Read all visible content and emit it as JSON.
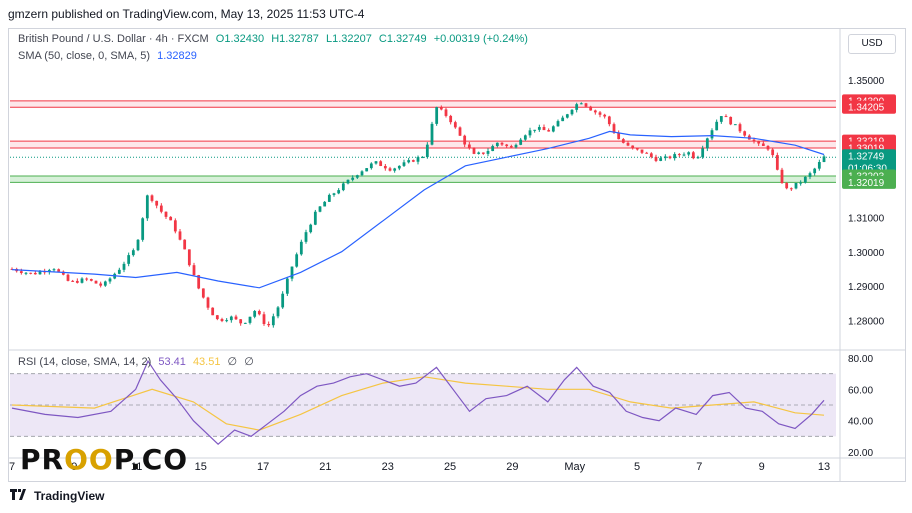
{
  "publisher_line": "gmzern published on TradingView.com, May 13, 2025 11:53 UTC-4",
  "legend": {
    "symbol": "British Pound / U.S. Dollar · 4h · FXCM",
    "open": "O1.32430",
    "high": "H1.32787",
    "low": "L1.32207",
    "close": "C1.32749",
    "change": "+0.00319 (+0.24%)",
    "sma_label": "SMA (50, close, 0, SMA, 5)",
    "sma_value": "1.32829",
    "rsi_label": "RSI (14, close, SMA, 14, 2)",
    "rsi_value": "53.41",
    "rsi_ma_value": "43.51",
    "rsi_extra1": "∅",
    "rsi_extra2": "∅"
  },
  "currency_button": "USD",
  "footer_brand": "TradingView",
  "watermark": {
    "left": "PR",
    "oo": "OO",
    "right": "P.CO"
  },
  "colors": {
    "up": "#089981",
    "down": "#f23645",
    "sma": "#2962ff",
    "rsi": "#7e57c2",
    "rsi_ma": "#f5c543",
    "resistance_fill": "#fde7ea",
    "resistance_line": "#f23645",
    "support_fill": "#d6f0d8",
    "support_line": "#4caf50",
    "rsi_band": "#ede7f6"
  },
  "chart_data": {
    "type": "candlestick",
    "price_axis": {
      "range": [
        1.272,
        1.3552
      ],
      "ticks": [
        1.35,
        1.34,
        1.33,
        1.32,
        1.31,
        1.3,
        1.29,
        1.28
      ],
      "tick_labels": [
        "1.35000",
        "",
        "",
        "",
        "1.31000",
        "1.30000",
        "1.29000",
        "1.28000"
      ]
    },
    "price_labels": [
      {
        "value": 1.3439,
        "text": "1.34390",
        "color": "#f23645",
        "level": "resistance"
      },
      {
        "value": 1.34205,
        "text": "1.34205",
        "color": "#f23645",
        "level": "resistance"
      },
      {
        "value": 1.33219,
        "text": "1.33219",
        "color": "#f23645",
        "level": "resistance"
      },
      {
        "value": 1.33019,
        "text": "1.33019",
        "color": "#f23645",
        "level": "resistance"
      },
      {
        "value": 1.32749,
        "text": "1.32749",
        "sub": "01:06:30",
        "color": "#089981",
        "level": "current"
      },
      {
        "value": 1.32203,
        "text": "1.32203",
        "color": "#4caf50",
        "level": "support"
      },
      {
        "value": 1.32019,
        "text": "1.32019",
        "color": "#4caf50",
        "level": "support"
      }
    ],
    "zones": [
      {
        "from": 1.34205,
        "to": 1.3439,
        "kind": "resistance"
      },
      {
        "from": 1.33019,
        "to": 1.33219,
        "kind": "resistance"
      },
      {
        "from": 1.32019,
        "to": 1.32203,
        "kind": "support"
      }
    ],
    "current_price": 1.32749,
    "x_axis": {
      "labels": [
        "7",
        "9",
        "11",
        "15",
        "17",
        "21",
        "23",
        "25",
        "29",
        "May",
        "5",
        "7",
        "9",
        "13"
      ],
      "label_candle_index": [
        0,
        34,
        68,
        103,
        137,
        171,
        205,
        239,
        273,
        307,
        341,
        375,
        409,
        443
      ]
    },
    "candles_count": 175,
    "close_path": [
      [
        0,
        1.295
      ],
      [
        5,
        1.2935
      ],
      [
        10,
        1.2955
      ],
      [
        14,
        1.291
      ],
      [
        18,
        1.292
      ],
      [
        22,
        1.29
      ],
      [
        26,
        1.295
      ],
      [
        30,
        1.301
      ],
      [
        33,
        1.317
      ],
      [
        36,
        1.312
      ],
      [
        39,
        1.308
      ],
      [
        42,
        1.3
      ],
      [
        45,
        1.29
      ],
      [
        48,
        1.283
      ],
      [
        50,
        1.28
      ],
      [
        53,
        1.281
      ],
      [
        56,
        1.279
      ],
      [
        59,
        1.283
      ],
      [
        62,
        1.278
      ],
      [
        65,
        1.285
      ],
      [
        68,
        1.296
      ],
      [
        71,
        1.305
      ],
      [
        74,
        1.312
      ],
      [
        77,
        1.316
      ],
      [
        80,
        1.319
      ],
      [
        84,
        1.323
      ],
      [
        88,
        1.326
      ],
      [
        92,
        1.324
      ],
      [
        96,
        1.326
      ],
      [
        100,
        1.328
      ],
      [
        103,
        1.342
      ],
      [
        106,
        1.339
      ],
      [
        109,
        1.333
      ],
      [
        112,
        1.328
      ],
      [
        115,
        1.329
      ],
      [
        118,
        1.332
      ],
      [
        121,
        1.33
      ],
      [
        124,
        1.334
      ],
      [
        127,
        1.336
      ],
      [
        130,
        1.335
      ],
      [
        133,
        1.338
      ],
      [
        136,
        1.342
      ],
      [
        138,
        1.3438
      ],
      [
        141,
        1.341
      ],
      [
        144,
        1.339
      ],
      [
        147,
        1.333
      ],
      [
        150,
        1.33
      ],
      [
        153,
        1.329
      ],
      [
        156,
        1.327
      ],
      [
        158,
        1.327
      ],
      [
        161,
        1.328
      ],
      [
        164,
        1.329
      ],
      [
        166,
        1.327
      ],
      [
        169,
        1.334
      ],
      [
        172,
        1.34
      ],
      [
        175,
        1.337
      ],
      [
        178,
        1.334
      ],
      [
        181,
        1.331
      ],
      [
        184,
        1.33
      ],
      [
        186,
        1.322
      ],
      [
        188,
        1.318
      ],
      [
        191,
        1.32
      ],
      [
        194,
        1.323
      ],
      [
        197,
        1.3275
      ]
    ],
    "sma_path": [
      [
        0,
        1.2948
      ],
      [
        20,
        1.2935
      ],
      [
        30,
        1.2925
      ],
      [
        40,
        1.294
      ],
      [
        50,
        1.2915
      ],
      [
        60,
        1.2895
      ],
      [
        70,
        1.294
      ],
      [
        80,
        1.3
      ],
      [
        90,
        1.309
      ],
      [
        100,
        1.318
      ],
      [
        110,
        1.325
      ],
      [
        120,
        1.3275
      ],
      [
        130,
        1.33
      ],
      [
        140,
        1.333
      ],
      [
        145,
        1.335
      ],
      [
        150,
        1.334
      ],
      [
        160,
        1.3335
      ],
      [
        170,
        1.3338
      ],
      [
        180,
        1.333
      ],
      [
        190,
        1.331
      ],
      [
        197,
        1.3283
      ]
    ],
    "rsi": {
      "range": [
        20,
        80
      ],
      "ticks": [
        80,
        60,
        40,
        20
      ],
      "tick_labels": [
        "80.00",
        "60.00",
        "40.00",
        "20.00"
      ],
      "band": [
        30,
        70
      ],
      "mid": 50,
      "rsi_path": [
        [
          0,
          48
        ],
        [
          8,
          44
        ],
        [
          16,
          42
        ],
        [
          24,
          46
        ],
        [
          30,
          60
        ],
        [
          33,
          78
        ],
        [
          36,
          66
        ],
        [
          40,
          54
        ],
        [
          44,
          40
        ],
        [
          48,
          30
        ],
        [
          50,
          25
        ],
        [
          54,
          34
        ],
        [
          58,
          30
        ],
        [
          62,
          38
        ],
        [
          66,
          46
        ],
        [
          70,
          56
        ],
        [
          74,
          62
        ],
        [
          78,
          64
        ],
        [
          82,
          68
        ],
        [
          86,
          70
        ],
        [
          90,
          66
        ],
        [
          94,
          62
        ],
        [
          98,
          64
        ],
        [
          103,
          74
        ],
        [
          107,
          60
        ],
        [
          111,
          46
        ],
        [
          115,
          54
        ],
        [
          120,
          56
        ],
        [
          125,
          62
        ],
        [
          130,
          52
        ],
        [
          134,
          66
        ],
        [
          137,
          74
        ],
        [
          141,
          62
        ],
        [
          145,
          58
        ],
        [
          149,
          46
        ],
        [
          153,
          42
        ],
        [
          157,
          40
        ],
        [
          161,
          48
        ],
        [
          166,
          44
        ],
        [
          170,
          56
        ],
        [
          174,
          58
        ],
        [
          178,
          48
        ],
        [
          182,
          46
        ],
        [
          186,
          38
        ],
        [
          190,
          35
        ],
        [
          194,
          44
        ],
        [
          197,
          53
        ]
      ],
      "ma_path": [
        [
          0,
          50
        ],
        [
          20,
          48
        ],
        [
          34,
          60
        ],
        [
          44,
          52
        ],
        [
          52,
          38
        ],
        [
          60,
          34
        ],
        [
          70,
          44
        ],
        [
          80,
          56
        ],
        [
          90,
          64
        ],
        [
          100,
          68
        ],
        [
          110,
          64
        ],
        [
          120,
          62
        ],
        [
          130,
          60
        ],
        [
          140,
          60
        ],
        [
          150,
          52
        ],
        [
          160,
          48
        ],
        [
          170,
          50
        ],
        [
          180,
          52
        ],
        [
          190,
          45
        ],
        [
          197,
          43.5
        ]
      ]
    }
  }
}
